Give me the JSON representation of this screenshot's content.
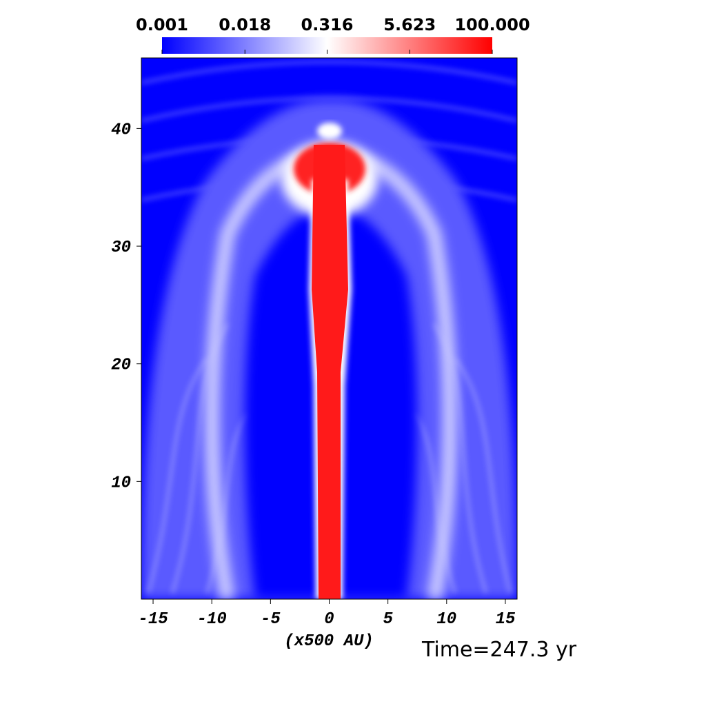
{
  "chart_data": {
    "type": "heatmap",
    "xlabel": "(x500 AU)",
    "annotation": "Time=247.3 yr",
    "xlim": [
      -16,
      16
    ],
    "xticks": [
      -15,
      -10,
      -5,
      0,
      5,
      10,
      15
    ],
    "ylim": [
      0,
      46
    ],
    "yticks": [
      10,
      20,
      30,
      40
    ],
    "colorbar": {
      "scale": "log",
      "lim": [
        0.001,
        100
      ],
      "ticks": [
        0.001,
        0.018,
        0.316,
        5.623,
        {
          "value": 100,
          "label": "100.000"
        }
      ],
      "colors": [
        "#0000ff",
        "#ffffff",
        "#ff0000"
      ]
    }
  }
}
